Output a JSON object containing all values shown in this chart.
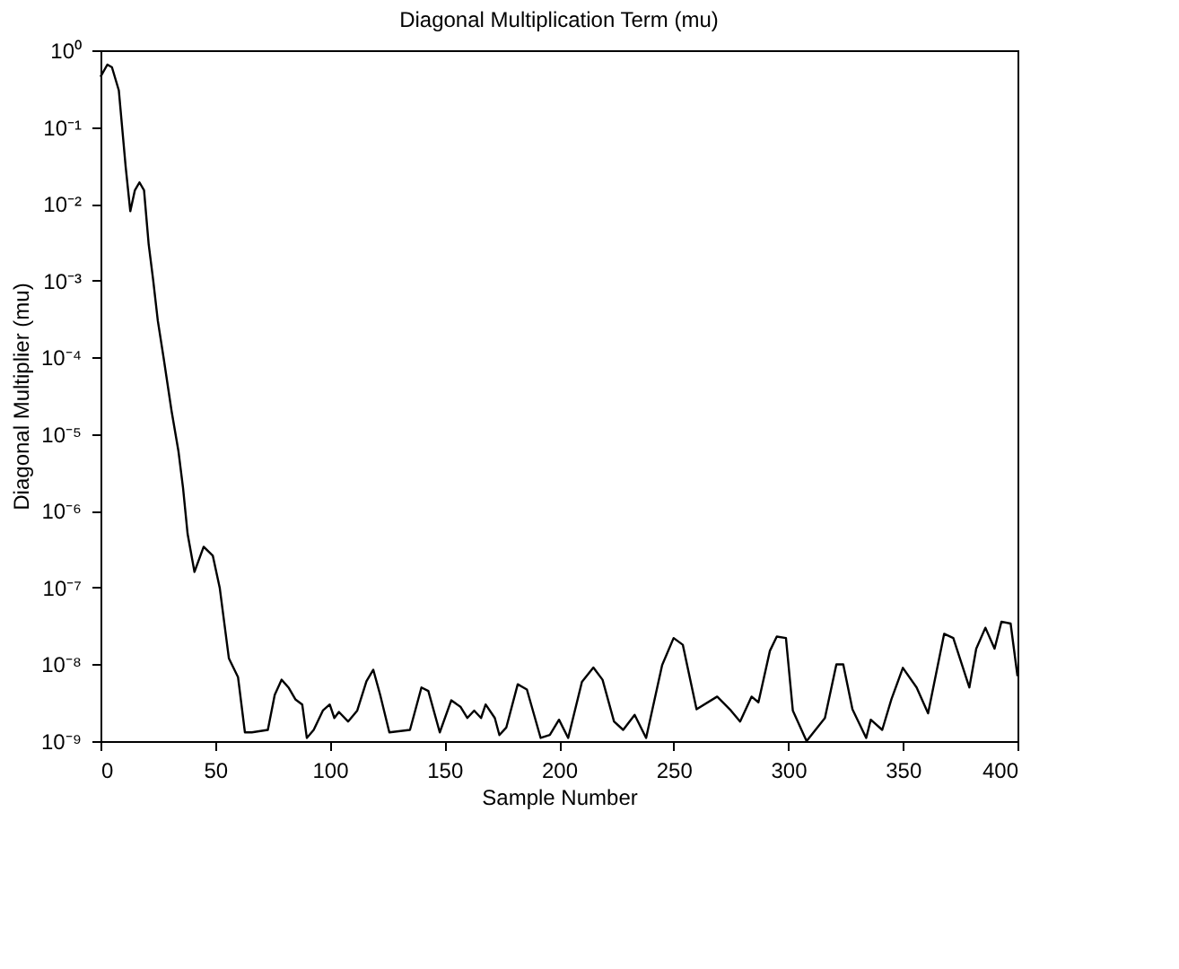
{
  "chart_data": {
    "type": "line",
    "title": "Diagonal Multiplication Term (mu)",
    "xlabel": "Sample Number",
    "ylabel": "Diagonal Multiplier (mu)",
    "log": "y",
    "grid": false,
    "marker": "none",
    "line_style": "solid",
    "xlim": [
      0,
      400
    ],
    "xticks": [
      0,
      50,
      100,
      150,
      200,
      250,
      300,
      350,
      400
    ],
    "ylim": [
      1e-09,
      1
    ],
    "yticks": [
      {
        "value": 1e-09,
        "label": "10⁻⁹"
      },
      {
        "value": 1e-08,
        "label": "10⁻⁸"
      },
      {
        "value": 1e-07,
        "label": "10⁻⁷"
      },
      {
        "value": 1e-06,
        "label": "10⁻⁶"
      },
      {
        "value": 1e-05,
        "label": "10⁻⁵"
      },
      {
        "value": 0.0001,
        "label": "10⁻⁴"
      },
      {
        "value": 0.001,
        "label": "10⁻³"
      },
      {
        "value": 0.01,
        "label": "10⁻²"
      },
      {
        "value": 0.1,
        "label": "10⁻¹"
      },
      {
        "value": 1,
        "label": "10⁰"
      }
    ],
    "x": [
      0,
      3,
      5,
      8,
      11,
      13,
      15,
      17,
      19,
      21,
      23,
      25,
      27.5,
      31,
      34,
      36,
      38,
      41,
      45,
      49,
      52,
      56,
      60,
      63,
      66,
      73,
      76,
      79,
      82,
      85,
      88,
      90,
      93,
      97,
      100,
      102,
      104,
      108,
      112,
      116,
      119,
      122,
      126,
      135,
      140,
      143,
      148,
      153,
      157,
      160,
      163,
      166,
      168,
      172,
      174,
      177,
      182,
      186,
      192,
      196,
      200,
      204,
      210,
      215,
      219,
      224,
      228,
      233,
      238,
      245,
      250,
      254,
      260,
      269,
      275,
      279,
      284,
      287,
      292,
      295,
      299,
      302,
      308,
      316,
      321,
      324,
      328,
      334,
      336,
      341,
      345,
      350,
      356,
      361,
      368,
      372,
      379,
      382,
      386,
      390,
      393,
      397,
      400
    ],
    "series": [
      {
        "color": "#000000",
        "values": [
          0.45,
          0.65,
          0.6,
          0.3,
          0.03,
          0.008,
          0.015,
          0.019,
          0.015,
          0.003,
          0.001,
          0.0003,
          0.0001,
          2e-05,
          6e-06,
          2e-06,
          5e-07,
          1.6e-07,
          3.4e-07,
          2.6e-07,
          1e-07,
          1.2e-08,
          6.8e-09,
          1.3e-09,
          1.3e-09,
          1.4e-09,
          4e-09,
          6.3e-09,
          5e-09,
          3.5e-09,
          3e-09,
          1.1e-09,
          1.4e-09,
          2.5e-09,
          3e-09,
          2e-09,
          2.4e-09,
          1.8e-09,
          2.5e-09,
          6e-09,
          8.5e-09,
          4e-09,
          1.3e-09,
          1.4e-09,
          5e-09,
          4.5e-09,
          1.3e-09,
          3.4e-09,
          2.8e-09,
          2e-09,
          2.5e-09,
          2e-09,
          3e-09,
          2e-09,
          1.2e-09,
          1.5e-09,
          5.5e-09,
          4.7e-09,
          1.1e-09,
          1.2e-09,
          1.9e-09,
          1.1e-09,
          5.9e-09,
          9.1e-09,
          6.3e-09,
          1.8e-09,
          1.4e-09,
          2.2e-09,
          1.1e-09,
          9.8e-09,
          2.2e-08,
          1.8e-08,
          2.6e-09,
          3.8e-09,
          2.5e-09,
          1.8e-09,
          3.8e-09,
          3.2e-09,
          1.5e-08,
          2.3e-08,
          2.2e-08,
          2.5e-09,
          1e-09,
          2e-09,
          1e-08,
          1e-08,
          2.6e-09,
          1.1e-09,
          1.9e-09,
          1.4e-09,
          3.5e-09,
          9e-09,
          5e-09,
          2.3e-09,
          2.5e-08,
          2.2e-08,
          5e-09,
          1.6e-08,
          3e-08,
          1.6e-08,
          3.6e-08,
          3.4e-08,
          7e-09
        ]
      }
    ]
  }
}
